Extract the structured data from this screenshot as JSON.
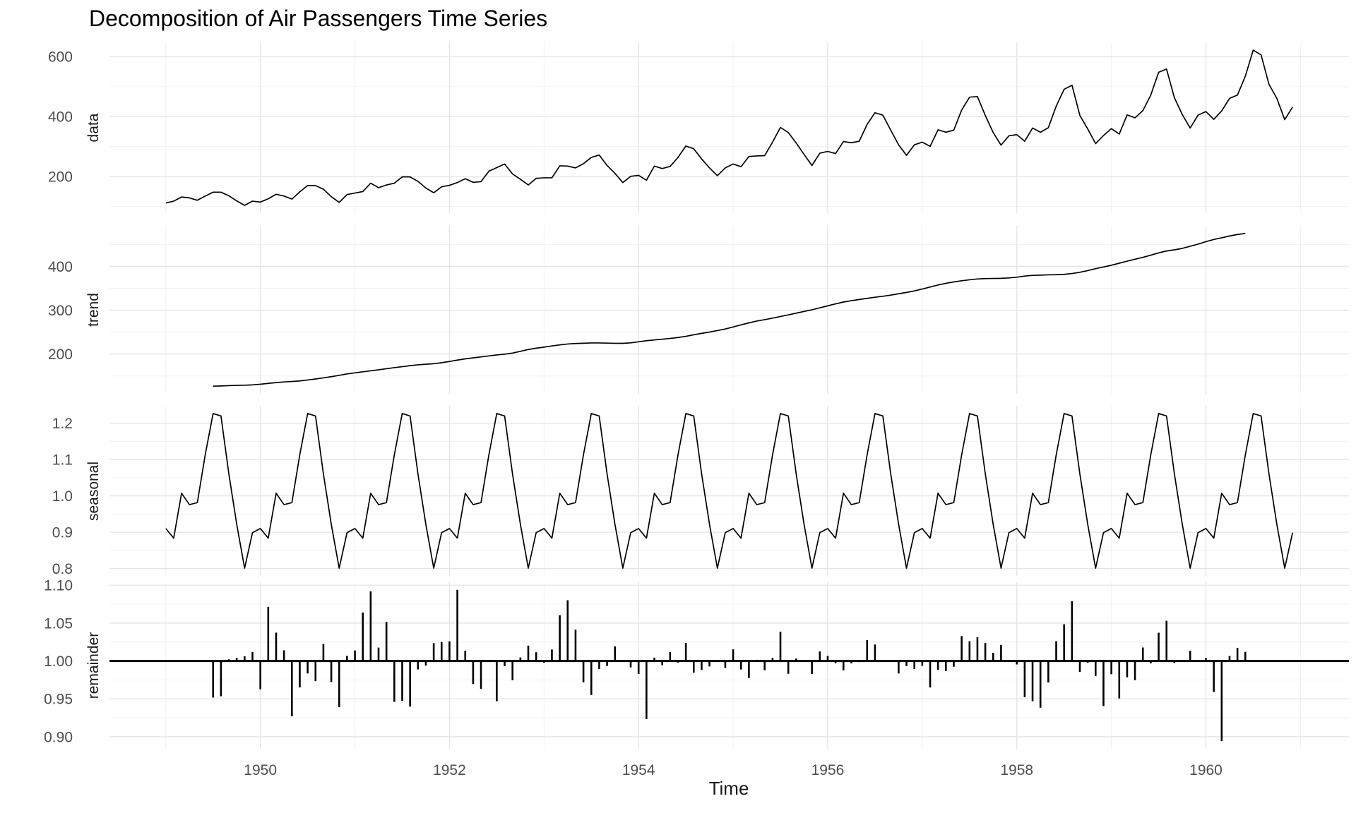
{
  "chart_data": {
    "type": "line",
    "title": "Decomposition of Air Passengers Time Series",
    "xlabel": "Time",
    "x_start_year": 1949,
    "frequency": 12,
    "n_obs": 144,
    "x_tick_years": [
      1950,
      1952,
      1954,
      1956,
      1958,
      1960
    ],
    "x_tick_labels": [
      "1950",
      "1952",
      "1954",
      "1956",
      "1958",
      "1960"
    ],
    "x_minor_years": [
      1949,
      1951,
      1953,
      1955,
      1957,
      1959,
      1961
    ],
    "legend": "none",
    "grid": "on",
    "panels": [
      {
        "label": "data",
        "kind": "line",
        "y_ticks": [
          200,
          400,
          600
        ],
        "y_tick_labels": [
          "200",
          "400",
          "600"
        ],
        "values": [
          112,
          118,
          132,
          129,
          121,
          135,
          148,
          148,
          136,
          119,
          104,
          118,
          115,
          126,
          141,
          135,
          125,
          149,
          170,
          170,
          158,
          133,
          114,
          140,
          145,
          150,
          178,
          163,
          172,
          178,
          199,
          199,
          184,
          162,
          146,
          166,
          171,
          180,
          193,
          181,
          183,
          218,
          230,
          242,
          209,
          191,
          172,
          194,
          196,
          196,
          236,
          235,
          229,
          243,
          264,
          272,
          237,
          211,
          180,
          201,
          204,
          188,
          235,
          227,
          234,
          264,
          302,
          293,
          259,
          229,
          203,
          229,
          242,
          233,
          267,
          269,
          270,
          315,
          364,
          347,
          312,
          274,
          237,
          278,
          284,
          277,
          317,
          313,
          318,
          374,
          413,
          405,
          355,
          306,
          271,
          306,
          315,
          301,
          356,
          348,
          355,
          422,
          465,
          467,
          404,
          347,
          305,
          336,
          340,
          318,
          362,
          348,
          363,
          435,
          491,
          505,
          404,
          359,
          310,
          337,
          360,
          342,
          406,
          396,
          420,
          472,
          548,
          559,
          463,
          407,
          362,
          405,
          417,
          391,
          419,
          461,
          472,
          535,
          622,
          606,
          508,
          461,
          390,
          432
        ]
      },
      {
        "label": "trend",
        "kind": "line",
        "y_ticks": [
          200,
          300,
          400
        ],
        "y_tick_labels": [
          "200",
          "300",
          "400"
        ],
        "start_offset_months": 6,
        "values": [
          126.7917,
          127.25,
          127.9583,
          128.5833,
          129,
          129.75,
          131.25,
          133.0833,
          134.9167,
          136.4167,
          137.4167,
          138.75,
          140.9167,
          143.1667,
          145.7083,
          148.4167,
          151.5417,
          154.7083,
          157.125,
          159.5417,
          161.8333,
          164.125,
          166.6667,
          169.0833,
          171.25,
          173.5833,
          175.4583,
          176.8333,
          178.0417,
          180.1667,
          183.125,
          186.2083,
          189.0417,
          191.2917,
          193.5833,
          195.8333,
          198.0417,
          199.75,
          202.2083,
          206.25,
          210.4167,
          213.375,
          215.8333,
          218.5,
          220.9167,
          222.9167,
          224.0833,
          224.7083,
          225.3333,
          225.3333,
          224.9583,
          224.5833,
          224.4583,
          225.5417,
          228,
          230.4583,
          232.25,
          233.9167,
          235.625,
          237.75,
          240.5,
          243.9583,
          247.1667,
          250.25,
          253.5,
          257.125,
          261.8333,
          266.6667,
          271.125,
          275.2083,
          278.5,
          281.9583,
          285.75,
          289.3333,
          293.25,
          297.2083,
          301,
          305.4583,
          309.9583,
          314.4167,
          318.625,
          321.75,
          324.5,
          327.0833,
          329.5417,
          331.8333,
          334.4583,
          337.5417,
          340.5417,
          344.0833,
          348.25,
          353,
          357.625,
          361.375,
          364.5,
          367.1667,
          369.4583,
          371.2083,
          372.1667,
          372.4167,
          372.75,
          373.625,
          375.25,
          377.9167,
          379.5,
          380,
          380.7083,
          380.9583,
          381.8333,
          383.6667,
          386.5,
          390.3333,
          394.7083,
          398.625,
          402.5417,
          407.1667,
          411.875,
          416.3333,
          420.5,
          425.5,
          430.7083,
          435.125,
          437.7083,
          440.9583,
          445.8333,
          450.625,
          456.3333,
          461.375,
          465.2083,
          469.3333,
          472.75,
          475.0417
        ]
      },
      {
        "label": "seasonal",
        "kind": "line",
        "y_ticks": [
          0.8,
          0.9,
          1.0,
          1.1,
          1.2
        ],
        "y_tick_labels": [
          "0.8",
          "0.9",
          "1.0",
          "1.1",
          "1.2"
        ],
        "monthly_factors": [
          0.9102304,
          0.8836253,
          1.0073663,
          0.975906,
          0.981378,
          1.1127758,
          1.2265555,
          1.219911,
          1.0604919,
          0.9217572,
          0.8011781,
          0.8988244
        ]
      },
      {
        "label": "remainder",
        "kind": "segments",
        "y_ticks": [
          0.9,
          0.95,
          1.0,
          1.05,
          1.1
        ],
        "y_tick_labels": [
          "0.90",
          "0.95",
          "1.00",
          "1.05",
          "1.10"
        ],
        "baseline": 1.0,
        "formula": "data / (trend * seasonal)"
      }
    ],
    "colors": {
      "series_line": "#000000",
      "baseline": "#000000",
      "grid_major": "#e4e4e4",
      "grid_minor": "#f0f0f0",
      "tick_text": "#4d4d4d",
      "label_text": "#1a1a1a",
      "background": "#ffffff"
    }
  }
}
